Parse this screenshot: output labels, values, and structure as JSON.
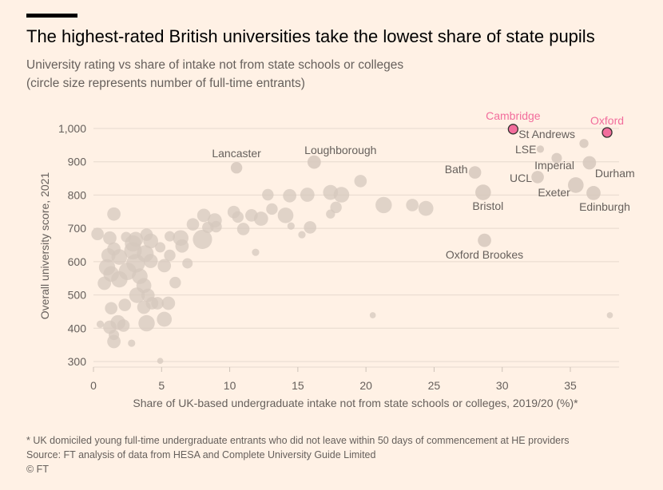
{
  "title": "The highest-rated British universities take the lowest share of state pupils",
  "subtitle_line1": "University rating vs share of intake not from state schools or colleges",
  "subtitle_line2": "(circle size represents number of full-time entrants)",
  "footnote": "* UK domiciled young full-time undergraduate entrants who did not leave within 50 days of commencement at HE providers",
  "source": "Source: FT analysis of data from HESA and Complete University Guide Limited",
  "copyright": "© FT",
  "colors": {
    "background": "#fff1e5",
    "bubble": "#d6c8bd",
    "highlight": "#f26d9c",
    "text": "#66605c",
    "grid": "#e6d9ce"
  },
  "chart_data": {
    "type": "scatter",
    "title": "The highest-rated British universities take the lowest share of state pupils",
    "xlabel": "Share of UK-based undergraduate intake not from state schools or colleges, 2019/20 (%)*",
    "ylabel": "Overall university score, 2021",
    "xlim": [
      0,
      38
    ],
    "ylim": [
      280,
      1020
    ],
    "xticks": [
      "0",
      "5",
      "10",
      "15",
      "20",
      "25",
      "30",
      "35"
    ],
    "yticks": [
      "300",
      "400",
      "500",
      "600",
      "700",
      "800",
      "900",
      "1,000"
    ],
    "xtick_values": [
      0,
      5,
      10,
      15,
      20,
      25,
      30,
      35
    ],
    "ytick_values": [
      300,
      400,
      500,
      600,
      700,
      800,
      900,
      1000
    ],
    "grid": "horizontal",
    "size_label": "number of full-time entrants (relative)",
    "labelled": [
      {
        "name": "Cambridge",
        "x": 30.8,
        "y": 998,
        "size": 4,
        "highlight": true
      },
      {
        "name": "Oxford",
        "x": 37.7,
        "y": 988,
        "size": 4,
        "highlight": true
      },
      {
        "name": "St Andrews",
        "x": 36.0,
        "y": 955,
        "size": 2
      },
      {
        "name": "LSE",
        "x": 32.8,
        "y": 938,
        "size": 1
      },
      {
        "name": "Imperial",
        "x": 34.0,
        "y": 911,
        "size": 3
      },
      {
        "name": "Durham",
        "x": 36.4,
        "y": 897,
        "size": 6
      },
      {
        "name": "Bath",
        "x": 28.0,
        "y": 868,
        "size": 5
      },
      {
        "name": "UCL",
        "x": 32.6,
        "y": 854,
        "size": 5
      },
      {
        "name": "Exeter",
        "x": 35.4,
        "y": 830,
        "size": 9
      },
      {
        "name": "Edinburgh",
        "x": 36.7,
        "y": 806,
        "size": 7
      },
      {
        "name": "Bristol",
        "x": 28.6,
        "y": 808,
        "size": 9
      },
      {
        "name": "Oxford Brookes",
        "x": 28.7,
        "y": 664,
        "size": 6
      },
      {
        "name": "Lancaster",
        "x": 10.5,
        "y": 882,
        "size": 4
      },
      {
        "name": "Loughborough",
        "x": 16.2,
        "y": 899,
        "size": 6
      }
    ],
    "others": [
      [
        21.3,
        770,
        10
      ],
      [
        19.6,
        842,
        5
      ],
      [
        17.4,
        808,
        8
      ],
      [
        18.2,
        801,
        9
      ],
      [
        15.7,
        801,
        7
      ],
      [
        14.4,
        798,
        6
      ],
      [
        12.8,
        801,
        4
      ],
      [
        17.8,
        763,
        4
      ],
      [
        17.4,
        743,
        2
      ],
      [
        15.9,
        703,
        5
      ],
      [
        14.1,
        739,
        9
      ],
      [
        13.1,
        758,
        4
      ],
      [
        12.3,
        729,
        7
      ],
      [
        11.6,
        739,
        5
      ],
      [
        10.3,
        749,
        5
      ],
      [
        10.6,
        734,
        4
      ],
      [
        11.0,
        698,
        5
      ],
      [
        11.9,
        628,
        1
      ],
      [
        14.5,
        707,
        1
      ],
      [
        15.3,
        681,
        1
      ],
      [
        23.4,
        770,
        5
      ],
      [
        24.4,
        760,
        8
      ],
      [
        37.9,
        439,
        0.5
      ],
      [
        20.5,
        439,
        0.5
      ],
      [
        1.5,
        743,
        6
      ],
      [
        8.1,
        739,
        6
      ],
      [
        8.9,
        724,
        7
      ],
      [
        8.4,
        703,
        4
      ],
      [
        7.3,
        712,
        5
      ],
      [
        8.0,
        667,
        15
      ],
      [
        9.0,
        705,
        4
      ],
      [
        6.4,
        671,
        9
      ],
      [
        5.6,
        676,
        3
      ],
      [
        6.5,
        647,
        6
      ],
      [
        6.9,
        595,
        3
      ],
      [
        5.6,
        619,
        4
      ],
      [
        5.2,
        588,
        6
      ],
      [
        4.9,
        643,
        3
      ],
      [
        3.9,
        681,
        5
      ],
      [
        4.2,
        662,
        8
      ],
      [
        3.8,
        624,
        11
      ],
      [
        4.2,
        602,
        7
      ],
      [
        3.1,
        667,
        8
      ],
      [
        2.9,
        633,
        12
      ],
      [
        3.1,
        595,
        14
      ],
      [
        2.5,
        571,
        12
      ],
      [
        1.9,
        547,
        10
      ],
      [
        1.3,
        563,
        9
      ],
      [
        0.8,
        535,
        6
      ],
      [
        1.2,
        671,
        6
      ],
      [
        0.3,
        683,
        5
      ],
      [
        1.1,
        619,
        7
      ],
      [
        1.0,
        583,
        10
      ],
      [
        1.9,
        614,
        9
      ],
      [
        1.5,
        638,
        6
      ],
      [
        2.4,
        674,
        3
      ],
      [
        2.9,
        655,
        10
      ],
      [
        3.4,
        556,
        9
      ],
      [
        3.7,
        528,
        8
      ],
      [
        4.0,
        499,
        6
      ],
      [
        4.3,
        475,
        5
      ],
      [
        3.2,
        499,
        9
      ],
      [
        3.7,
        463,
        6
      ],
      [
        4.7,
        475,
        5
      ],
      [
        5.5,
        475,
        6
      ],
      [
        6.0,
        537,
        4
      ],
      [
        5.2,
        427,
        8
      ],
      [
        3.9,
        415,
        10
      ],
      [
        4.9,
        302,
        0.5
      ],
      [
        1.3,
        460,
        5
      ],
      [
        1.2,
        403,
        6
      ],
      [
        1.8,
        417,
        8
      ],
      [
        2.2,
        408,
        5
      ],
      [
        1.5,
        360,
        6
      ],
      [
        0.5,
        412,
        1
      ],
      [
        2.8,
        355,
        1
      ],
      [
        1.5,
        380,
        3
      ],
      [
        2.3,
        470,
        5
      ]
    ]
  }
}
